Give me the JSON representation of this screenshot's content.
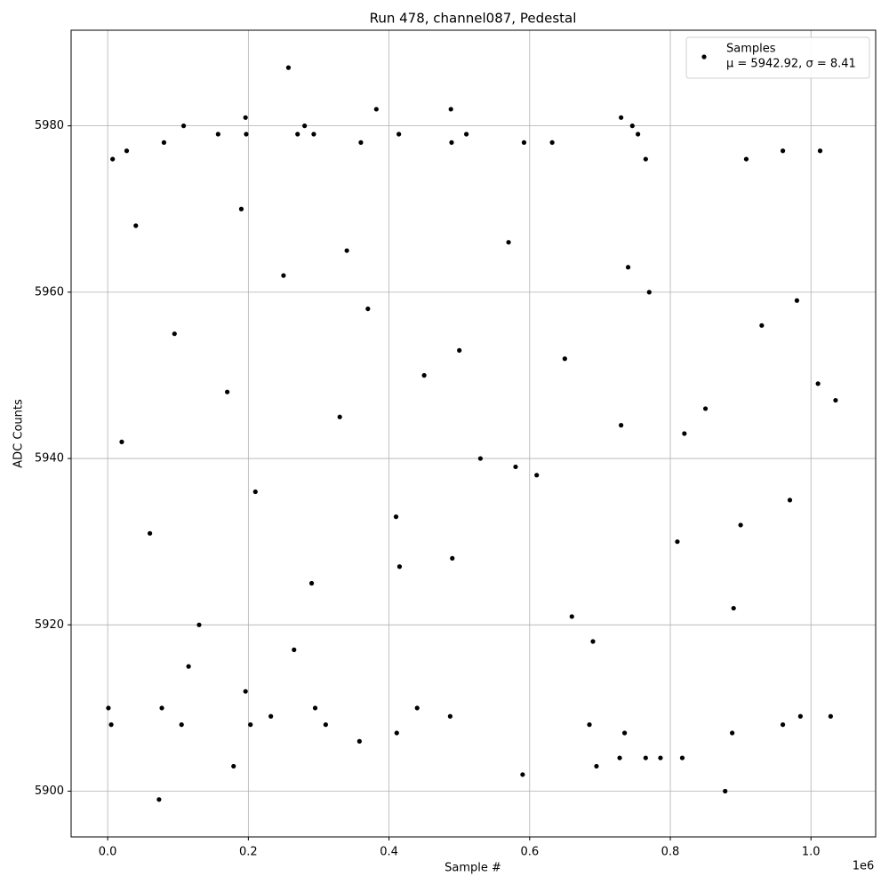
{
  "chart_data": {
    "type": "scatter",
    "title": "Run 478, channel087, Pedestal",
    "xlabel": "Sample #",
    "ylabel": "ADC Counts",
    "x_offset_label": "1e6",
    "xlim": [
      -52000,
      1092000
    ],
    "ylim": [
      5894.5,
      5991.5
    ],
    "xticks": [
      {
        "value": 0,
        "label": "0.0"
      },
      {
        "value": 200000,
        "label": "0.2"
      },
      {
        "value": 400000,
        "label": "0.4"
      },
      {
        "value": 600000,
        "label": "0.6"
      },
      {
        "value": 800000,
        "label": "0.8"
      },
      {
        "value": 1000000,
        "label": "1.0"
      }
    ],
    "yticks": [
      5900,
      5920,
      5940,
      5960,
      5980
    ],
    "grid": true,
    "legend_position": "upper right",
    "series": [
      {
        "name": "Samples",
        "legend_stats": "μ = 5942.92, σ = 8.41",
        "color": "#000000",
        "x": [
          1000,
          5000,
          73000,
          77000,
          105000,
          179000,
          196000,
          203000,
          232000,
          295000,
          310000,
          358000,
          411000,
          440000,
          487000,
          590000,
          685000,
          695000,
          728000,
          735000,
          765000,
          786000,
          817000,
          878000,
          888000,
          960000,
          985000,
          1028000,
          7000,
          27000,
          80000,
          108000,
          157000,
          196000,
          197000,
          257000,
          270000,
          280000,
          293000,
          360000,
          382000,
          414000,
          488000,
          489000,
          510000,
          592000,
          632000,
          730000,
          746000,
          754000,
          765000,
          908000,
          960000,
          1013000,
          20000,
          60000,
          95000,
          130000,
          170000,
          210000,
          250000,
          290000,
          330000,
          370000,
          410000,
          450000,
          490000,
          530000,
          570000,
          610000,
          650000,
          690000,
          730000,
          770000,
          810000,
          850000,
          890000,
          930000,
          970000,
          1010000,
          40000,
          115000,
          190000,
          265000,
          340000,
          415000,
          500000,
          580000,
          660000,
          740000,
          820000,
          900000,
          980000,
          1035000
        ],
        "values": [
          5910,
          5908,
          5899,
          5910,
          5908,
          5903,
          5912,
          5908,
          5909,
          5910,
          5908,
          5906,
          5907,
          5910,
          5909,
          5902,
          5908,
          5903,
          5904,
          5907,
          5904,
          5904,
          5904,
          5900,
          5907,
          5908,
          5909,
          5909,
          5976,
          5977,
          5978,
          5980,
          5979,
          5981,
          5979,
          5987,
          5979,
          5980,
          5979,
          5978,
          5982,
          5979,
          5982,
          5978,
          5979,
          5978,
          5978,
          5981,
          5980,
          5979,
          5976,
          5976,
          5977,
          5977,
          5942,
          5931,
          5955,
          5920,
          5948,
          5936,
          5962,
          5925,
          5945,
          5958,
          5933,
          5950,
          5928,
          5940,
          5966,
          5938,
          5952,
          5918,
          5944,
          5960,
          5930,
          5946,
          5922,
          5956,
          5935,
          5949,
          5968,
          5915,
          5970,
          5917,
          5965,
          5927,
          5953,
          5939,
          5921,
          5963,
          5943,
          5932,
          5959,
          5947
        ]
      }
    ]
  }
}
